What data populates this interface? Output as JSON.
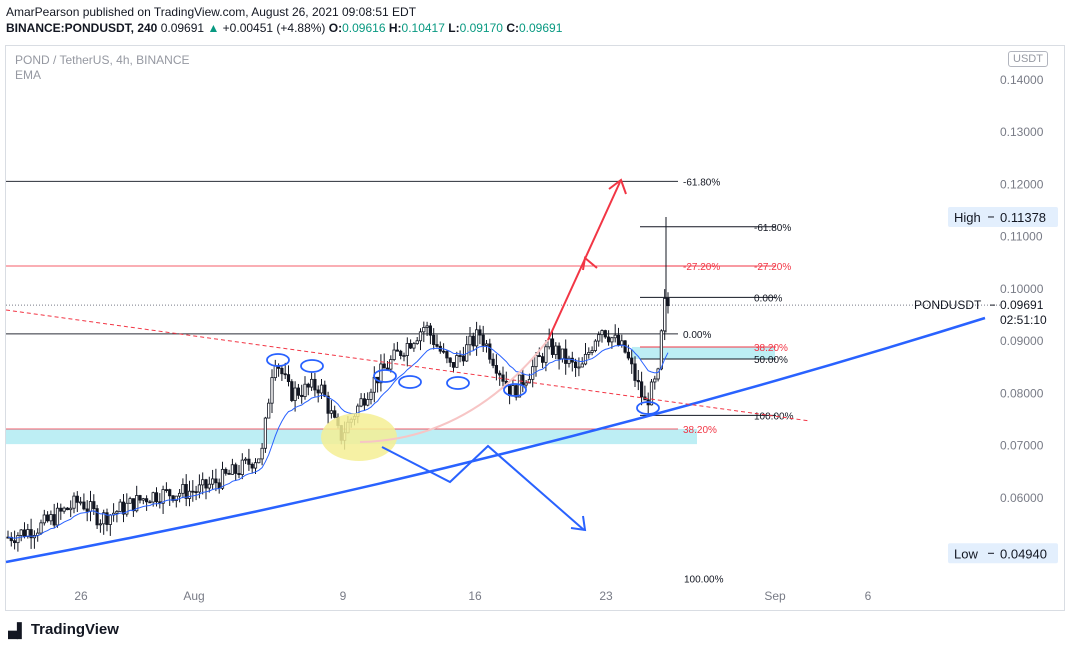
{
  "header": {
    "line1": "AmarPearson published on TradingView.com, August 26, 2021 09:08:51 EDT",
    "symbol": "BINANCE:PONDUSDT, 240",
    "last": "0.09691",
    "change": "+0.00451 (+4.88%)",
    "open_label": "O:",
    "open": "0.09616",
    "high_label": "H:",
    "high": "0.10417",
    "low_label": "L:",
    "low": "0.09170",
    "close_label": "C:",
    "close": "0.09691"
  },
  "legend": {
    "title": "POND / TetherUS, 4h, BINANCE",
    "indicator": "EMA"
  },
  "unit_badge": "USDT",
  "footer": {
    "brand": "TradingView"
  },
  "chart_data": {
    "type": "candlestick",
    "x_ticks": [
      "26",
      "Aug",
      "9",
      "16",
      "23",
      "Sep",
      "6"
    ],
    "y_ticks": [
      0.14,
      0.13,
      0.12,
      0.11,
      0.1,
      0.09,
      0.08,
      0.07,
      0.06
    ],
    "y_tick_labels": [
      "0.14000",
      "0.13000",
      "0.12000",
      "0.11000",
      "0.10000",
      "0.09000",
      "0.08000",
      "0.07000",
      "0.06000"
    ],
    "ylim": [
      0.044,
      0.148
    ],
    "price_markers": [
      {
        "label": "High",
        "value": 0.11378,
        "text": "0.11378"
      },
      {
        "label": "PONDUSDT",
        "value": 0.09691,
        "text": "0.09691",
        "countdown": "02:51:10"
      },
      {
        "label": "Low",
        "value": 0.0494,
        "text": "0.04940"
      }
    ],
    "fib_left": [
      {
        "label": "-61.80%",
        "value": 0.1206,
        "color": "#131722"
      },
      {
        "label": "-27.20%",
        "value": 0.1044,
        "color": "#f23645"
      },
      {
        "label": "0.00%",
        "value": 0.0914,
        "color": "#131722"
      },
      {
        "label": "38.20%",
        "value": 0.0732,
        "color": "#f23645"
      }
    ],
    "fib_right": [
      {
        "label": "-61.80%",
        "value": 0.1119,
        "color": "#131722"
      },
      {
        "label": "-27.20%",
        "value": 0.1044,
        "color": "#f23645"
      },
      {
        "label": "0.00%",
        "value": 0.0984,
        "color": "#131722"
      },
      {
        "label": "38.20%",
        "value": 0.0889,
        "color": "#f23645"
      },
      {
        "label": "50.00%",
        "value": 0.0866,
        "color": "#131722"
      },
      {
        "label": "100.00%",
        "value": 0.0758,
        "color": "#131722"
      },
      {
        "label": "100.00%",
        "value": 0.0446,
        "color": "#131722"
      }
    ],
    "zones": [
      {
        "from": 0.0703,
        "to": 0.0732,
        "color": "#b2ebf2"
      },
      {
        "from": 0.0866,
        "to": 0.0889,
        "color": "#b2ebf2"
      }
    ],
    "colors": {
      "up": "#131722",
      "down": "#131722",
      "ema": "#2962ff",
      "trend": "#2962ff",
      "arrow": "#f23645",
      "highlight": "#f5ef94"
    }
  }
}
